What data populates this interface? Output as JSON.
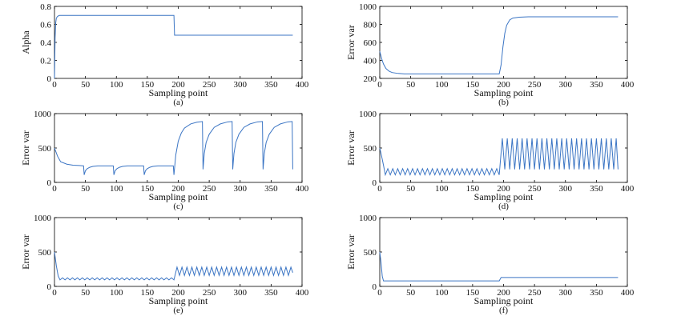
{
  "chart_data": [
    {
      "type": "line",
      "xlabel": "Sampling point",
      "ylabel": "Alpha",
      "caption": "(a)",
      "color": "#3b75c4",
      "xlim": [
        0,
        400
      ],
      "xticks": [
        0,
        50,
        100,
        150,
        200,
        250,
        300,
        350,
        400
      ],
      "ylim": [
        0,
        0.8
      ],
      "yticks": [
        0,
        0.2,
        0.4,
        0.6,
        0.8
      ],
      "x": [
        0,
        1,
        2,
        3,
        5,
        8,
        193,
        194,
        385
      ],
      "values": [
        0,
        0.45,
        0.62,
        0.67,
        0.69,
        0.7,
        0.7,
        0.48,
        0.48
      ]
    },
    {
      "type": "line",
      "xlabel": "Sampling point",
      "ylabel": "Error var",
      "caption": "(b)",
      "color": "#3b75c4",
      "xlim": [
        0,
        400
      ],
      "xticks": [
        0,
        50,
        100,
        150,
        200,
        250,
        300,
        350,
        400
      ],
      "ylim": [
        200,
        1000
      ],
      "yticks": [
        200,
        400,
        600,
        800,
        1000
      ],
      "x": [
        0,
        3,
        6,
        10,
        15,
        20,
        30,
        40,
        193,
        196,
        199,
        202,
        205,
        210,
        215,
        225,
        240,
        385
      ],
      "values": [
        500,
        420,
        360,
        310,
        280,
        265,
        255,
        250,
        250,
        350,
        550,
        700,
        790,
        850,
        870,
        880,
        885,
        885
      ]
    },
    {
      "type": "line",
      "xlabel": "Sampling point",
      "ylabel": "Error var",
      "caption": "(c)",
      "color": "#3b75c4",
      "xlim": [
        0,
        400
      ],
      "xticks": [
        0,
        50,
        100,
        150,
        200,
        250,
        300,
        350,
        400
      ],
      "ylim": [
        0,
        1000
      ],
      "yticks": [
        0,
        500,
        1000
      ],
      "x": [
        0,
        5,
        10,
        20,
        30,
        40,
        47,
        48,
        50,
        53,
        57,
        62,
        70,
        95,
        96,
        98,
        101,
        105,
        110,
        118,
        144,
        145,
        147,
        150,
        154,
        159,
        167,
        192,
        193,
        196,
        200,
        205,
        210,
        220,
        230,
        239,
        240,
        242,
        245,
        250,
        258,
        268,
        280,
        287,
        288,
        290,
        293,
        298,
        306,
        316,
        328,
        336,
        337,
        339,
        342,
        347,
        355,
        365,
        377,
        384,
        385
      ],
      "values": [
        500,
        380,
        300,
        265,
        250,
        245,
        240,
        110,
        170,
        200,
        220,
        232,
        240,
        240,
        110,
        170,
        200,
        220,
        232,
        240,
        240,
        110,
        170,
        200,
        220,
        232,
        240,
        240,
        110,
        400,
        600,
        720,
        790,
        850,
        875,
        885,
        190,
        420,
        580,
        700,
        800,
        850,
        880,
        885,
        190,
        420,
        580,
        700,
        800,
        850,
        880,
        885,
        190,
        420,
        580,
        700,
        800,
        850,
        880,
        885,
        190
      ]
    },
    {
      "type": "line",
      "xlabel": "Sampling point",
      "ylabel": "Error var",
      "caption": "(d)",
      "color": "#3b75c4",
      "xlim": [
        0,
        400
      ],
      "xticks": [
        0,
        50,
        100,
        150,
        200,
        250,
        300,
        350,
        400
      ],
      "ylim": [
        0,
        1000
      ],
      "yticks": [
        0,
        500,
        1000
      ],
      "x": [
        0,
        3,
        6,
        9,
        13,
        17,
        21,
        25,
        29,
        33,
        37,
        41,
        45,
        49,
        53,
        57,
        61,
        65,
        69,
        73,
        77,
        81,
        85,
        89,
        93,
        97,
        101,
        105,
        109,
        113,
        117,
        121,
        125,
        129,
        133,
        137,
        141,
        145,
        149,
        153,
        157,
        161,
        165,
        169,
        173,
        177,
        181,
        185,
        189,
        193,
        198,
        202,
        206,
        210,
        214,
        218,
        222,
        226,
        230,
        234,
        238,
        242,
        246,
        250,
        254,
        258,
        262,
        266,
        270,
        274,
        278,
        282,
        286,
        290,
        294,
        298,
        302,
        306,
        310,
        314,
        318,
        322,
        326,
        330,
        334,
        338,
        342,
        346,
        350,
        354,
        358,
        362,
        366,
        370,
        374,
        378,
        382,
        385
      ],
      "values": [
        500,
        380,
        250,
        110,
        200,
        110,
        200,
        110,
        200,
        110,
        200,
        110,
        200,
        110,
        200,
        110,
        200,
        110,
        200,
        110,
        200,
        110,
        200,
        110,
        200,
        110,
        200,
        110,
        200,
        110,
        200,
        110,
        200,
        110,
        200,
        110,
        200,
        110,
        200,
        110,
        200,
        110,
        200,
        110,
        200,
        110,
        200,
        110,
        200,
        110,
        640,
        190,
        640,
        190,
        640,
        190,
        640,
        190,
        640,
        190,
        640,
        190,
        640,
        190,
        640,
        190,
        640,
        190,
        640,
        190,
        640,
        190,
        640,
        190,
        640,
        190,
        640,
        190,
        640,
        190,
        640,
        190,
        640,
        190,
        640,
        190,
        640,
        190,
        640,
        190,
        640,
        190,
        640,
        190,
        640,
        190,
        640,
        190
      ]
    },
    {
      "type": "line",
      "xlabel": "Sampling point",
      "ylabel": "Error var",
      "caption": "(e)",
      "color": "#3b75c4",
      "xlim": [
        0,
        400
      ],
      "xticks": [
        0,
        50,
        100,
        150,
        200,
        250,
        300,
        350,
        400
      ],
      "ylim": [
        0,
        1000
      ],
      "yticks": [
        0,
        500,
        1000
      ],
      "x": [
        0,
        3,
        6,
        9,
        13,
        17,
        21,
        25,
        29,
        33,
        37,
        41,
        45,
        49,
        53,
        57,
        61,
        65,
        69,
        73,
        77,
        81,
        85,
        89,
        93,
        97,
        101,
        105,
        109,
        113,
        117,
        121,
        125,
        129,
        133,
        137,
        141,
        145,
        149,
        153,
        157,
        161,
        165,
        169,
        173,
        177,
        181,
        185,
        189,
        193,
        198,
        202,
        206,
        210,
        214,
        218,
        222,
        226,
        230,
        234,
        238,
        242,
        246,
        250,
        254,
        258,
        262,
        266,
        270,
        274,
        278,
        282,
        286,
        290,
        294,
        298,
        302,
        306,
        310,
        314,
        318,
        322,
        326,
        330,
        334,
        338,
        342,
        346,
        350,
        354,
        358,
        362,
        366,
        370,
        374,
        378,
        382,
        385
      ],
      "values": [
        500,
        300,
        150,
        95,
        125,
        95,
        125,
        95,
        125,
        95,
        125,
        95,
        125,
        95,
        125,
        95,
        125,
        95,
        125,
        95,
        125,
        95,
        125,
        95,
        125,
        95,
        125,
        95,
        125,
        95,
        125,
        95,
        125,
        95,
        125,
        95,
        125,
        95,
        125,
        95,
        125,
        95,
        125,
        95,
        125,
        95,
        125,
        95,
        125,
        95,
        280,
        160,
        280,
        160,
        280,
        160,
        280,
        160,
        280,
        160,
        280,
        160,
        280,
        160,
        280,
        160,
        280,
        160,
        280,
        160,
        280,
        160,
        280,
        160,
        280,
        160,
        280,
        160,
        280,
        160,
        280,
        160,
        280,
        160,
        280,
        160,
        280,
        160,
        280,
        160,
        280,
        160,
        280,
        160,
        280,
        160,
        280,
        200
      ]
    },
    {
      "type": "line",
      "xlabel": "Sampling point",
      "ylabel": "Error var",
      "caption": "(f)",
      "color": "#3b75c4",
      "xlim": [
        0,
        400
      ],
      "xticks": [
        0,
        50,
        100,
        150,
        200,
        250,
        300,
        350,
        400
      ],
      "ylim": [
        0,
        1000
      ],
      "yticks": [
        0,
        500,
        1000
      ],
      "x": [
        0,
        2,
        4,
        6,
        193,
        196,
        385
      ],
      "values": [
        500,
        350,
        150,
        80,
        80,
        130,
        130
      ]
    }
  ]
}
